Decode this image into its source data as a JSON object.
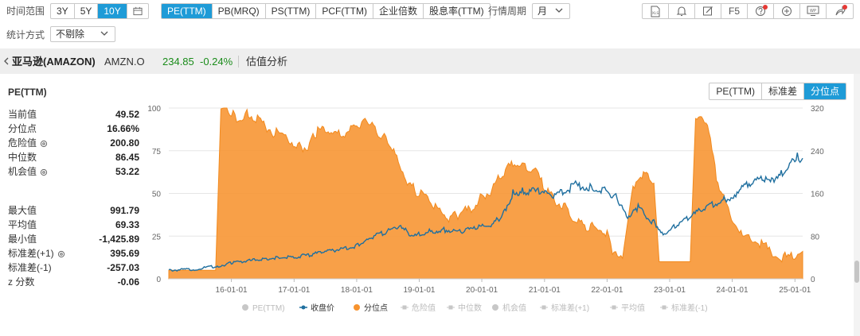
{
  "toolbar": {
    "time_range_label": "时间范围",
    "ranges": [
      {
        "label": "3Y",
        "active": false
      },
      {
        "label": "5Y",
        "active": false
      },
      {
        "label": "10Y",
        "active": true
      }
    ],
    "metrics": [
      {
        "label": "PE(TTM)",
        "active": true
      },
      {
        "label": "PB(MRQ)",
        "active": false
      },
      {
        "label": "PS(TTM)",
        "active": false
      },
      {
        "label": "PCF(TTM)",
        "active": false
      },
      {
        "label": "企业倍数",
        "active": false
      },
      {
        "label": "股息率(TTM)",
        "active": false
      }
    ],
    "period_label": "行情周期",
    "period_value": "月",
    "stat_label": "统计方式",
    "stat_value": "不剔除",
    "tools": {
      "xls": "XLS",
      "f5": "F5",
      "wp": "WP",
      "icons": [
        "xls-export-icon",
        "bell-icon",
        "edit-icon",
        "f5-button",
        "help-icon",
        "zoom-in-icon",
        "wp-icon",
        "share-icon"
      ]
    }
  },
  "stock": {
    "name": "亚马逊(AMAZON)",
    "ticker": "AMZN.O",
    "price": "234.85",
    "change": "-0.24%",
    "section": "估值分析",
    "up_color": "#1a8c1a"
  },
  "panel": {
    "title": "PE(TTM)",
    "stats1": [
      {
        "label": "当前值",
        "value": "49.52",
        "gear": false
      },
      {
        "label": "分位点",
        "value": "16.66%",
        "gear": false
      },
      {
        "label": "危险值",
        "value": "200.80",
        "gear": true
      },
      {
        "label": "中位数",
        "value": "86.45",
        "gear": false
      },
      {
        "label": "机会值",
        "value": "53.22",
        "gear": true
      }
    ],
    "stats2": [
      {
        "label": "最大值",
        "value": "991.79",
        "gear": false
      },
      {
        "label": "平均值",
        "value": "69.33",
        "gear": false
      },
      {
        "label": "最小值",
        "value": "-1,425.89",
        "gear": false
      },
      {
        "label": "标准差(+1)",
        "value": "395.69",
        "gear": true
      },
      {
        "label": "标准差(-1)",
        "value": "-257.03",
        "gear": false
      },
      {
        "label": "z 分数",
        "value": "-0.06",
        "gear": false
      }
    ]
  },
  "mode_tabs": [
    {
      "label": "PE(TTM)",
      "active": false
    },
    {
      "label": "标准差",
      "active": false
    },
    {
      "label": "分位点",
      "active": true
    }
  ],
  "chart_data": {
    "type": "area",
    "x_ticks": [
      "16-01-01",
      "17-01-01",
      "18-01-01",
      "19-01-01",
      "20-01-01",
      "21-01-01",
      "22-01-01",
      "23-01-01",
      "24-01-01",
      "25-01-01"
    ],
    "y_left_ticks": [
      "0",
      "25",
      "50",
      "75",
      "100"
    ],
    "y_right_ticks": [
      "0",
      "80",
      "160",
      "240",
      "320"
    ],
    "ylim_left": [
      0,
      100
    ],
    "ylim_right": [
      0,
      320
    ],
    "legend": [
      {
        "label": "PE(TTM)",
        "active": false,
        "marker": "dot"
      },
      {
        "label": "收盘价",
        "active": true,
        "marker": "line-dot"
      },
      {
        "label": "分位点",
        "active": true,
        "marker": "dot"
      },
      {
        "label": "危险值",
        "active": false,
        "marker": "triangle"
      },
      {
        "label": "中位数",
        "active": false,
        "marker": "down-triangle"
      },
      {
        "label": "机会值",
        "active": false,
        "marker": "dot"
      },
      {
        "label": "标准差(+1)",
        "active": false,
        "marker": "diamond"
      },
      {
        "label": "平均值",
        "active": false,
        "marker": "square"
      },
      {
        "label": "标准差(-1)",
        "active": false,
        "marker": "triangle"
      }
    ],
    "colors": {
      "percentile": "#f7932f",
      "close": "#1f6f9f",
      "grid": "#e6e6e6",
      "inactive": "#c7c7c7"
    },
    "series": [
      {
        "name": "分位点",
        "axis": "left",
        "points": [
          [
            "2015-01-01",
            5
          ],
          [
            "2015-06-01",
            5
          ],
          [
            "2015-10-01",
            5
          ],
          [
            "2015-11-01",
            99
          ],
          [
            "2016-01-01",
            98
          ],
          [
            "2016-02-01",
            93
          ],
          [
            "2016-04-01",
            97
          ],
          [
            "2016-06-01",
            93
          ],
          [
            "2016-09-01",
            86
          ],
          [
            "2016-12-01",
            82
          ],
          [
            "2017-02-01",
            77
          ],
          [
            "2017-04-01",
            78
          ],
          [
            "2017-05-01",
            85
          ],
          [
            "2017-07-01",
            88
          ],
          [
            "2017-09-01",
            85
          ],
          [
            "2017-11-01",
            84
          ],
          [
            "2018-01-01",
            90
          ],
          [
            "2018-03-01",
            93
          ],
          [
            "2018-04-01",
            89
          ],
          [
            "2018-06-01",
            83
          ],
          [
            "2018-07-01",
            80
          ],
          [
            "2018-09-01",
            70
          ],
          [
            "2018-11-01",
            55
          ],
          [
            "2019-01-01",
            50
          ],
          [
            "2019-03-01",
            47
          ],
          [
            "2019-05-01",
            40
          ],
          [
            "2019-07-01",
            35
          ],
          [
            "2019-09-01",
            39
          ],
          [
            "2019-11-01",
            40
          ],
          [
            "2020-01-01",
            48
          ],
          [
            "2020-03-01",
            52
          ],
          [
            "2020-05-01",
            62
          ],
          [
            "2020-07-01",
            68
          ],
          [
            "2020-09-01",
            67
          ],
          [
            "2020-11-01",
            64
          ],
          [
            "2021-01-01",
            54
          ],
          [
            "2021-03-01",
            46
          ],
          [
            "2021-05-01",
            42
          ],
          [
            "2021-07-01",
            33
          ],
          [
            "2021-09-01",
            31
          ],
          [
            "2021-11-01",
            30
          ],
          [
            "2022-01-01",
            26
          ],
          [
            "2022-02-01",
            14
          ],
          [
            "2022-04-01",
            12
          ],
          [
            "2022-06-01",
            55
          ],
          [
            "2022-08-01",
            62
          ],
          [
            "2022-10-01",
            56
          ],
          [
            "2022-11-01",
            10
          ],
          [
            "2023-05-01",
            10
          ],
          [
            "2023-06-01",
            93
          ],
          [
            "2023-08-01",
            94
          ],
          [
            "2023-10-01",
            60
          ],
          [
            "2023-12-01",
            42
          ],
          [
            "2024-03-01",
            25
          ],
          [
            "2024-06-01",
            22
          ],
          [
            "2024-09-01",
            14
          ],
          [
            "2024-12-01",
            12
          ],
          [
            "2025-02-15",
            16
          ]
        ]
      },
      {
        "name": "收盘价",
        "axis": "right",
        "points": [
          [
            "2015-01-01",
            16
          ],
          [
            "2015-06-01",
            18
          ],
          [
            "2015-11-01",
            25
          ],
          [
            "2016-01-01",
            30
          ],
          [
            "2016-04-01",
            33
          ],
          [
            "2016-07-01",
            37
          ],
          [
            "2016-10-01",
            40
          ],
          [
            "2017-01-01",
            40
          ],
          [
            "2017-04-01",
            45
          ],
          [
            "2017-07-01",
            50
          ],
          [
            "2017-10-01",
            56
          ],
          [
            "2018-01-01",
            62
          ],
          [
            "2018-03-01",
            75
          ],
          [
            "2018-06-01",
            85
          ],
          [
            "2018-09-01",
            98
          ],
          [
            "2018-12-01",
            80
          ],
          [
            "2019-03-01",
            88
          ],
          [
            "2019-06-01",
            92
          ],
          [
            "2019-09-01",
            88
          ],
          [
            "2019-12-01",
            95
          ],
          [
            "2020-03-01",
            100
          ],
          [
            "2020-05-01",
            120
          ],
          [
            "2020-07-01",
            160
          ],
          [
            "2020-09-01",
            165
          ],
          [
            "2020-12-01",
            163
          ],
          [
            "2021-03-01",
            155
          ],
          [
            "2021-07-01",
            175
          ],
          [
            "2021-10-01",
            170
          ],
          [
            "2022-01-01",
            165
          ],
          [
            "2022-03-01",
            150
          ],
          [
            "2022-05-01",
            110
          ],
          [
            "2022-07-01",
            135
          ],
          [
            "2022-10-01",
            105
          ],
          [
            "2022-12-01",
            85
          ],
          [
            "2023-02-01",
            100
          ],
          [
            "2023-05-01",
            115
          ],
          [
            "2023-08-01",
            135
          ],
          [
            "2023-11-01",
            145
          ],
          [
            "2024-01-01",
            155
          ],
          [
            "2024-04-01",
            180
          ],
          [
            "2024-07-01",
            185
          ],
          [
            "2024-09-01",
            180
          ],
          [
            "2024-12-01",
            215
          ],
          [
            "2025-01-15",
            230
          ],
          [
            "2025-02-15",
            226
          ]
        ]
      }
    ]
  }
}
